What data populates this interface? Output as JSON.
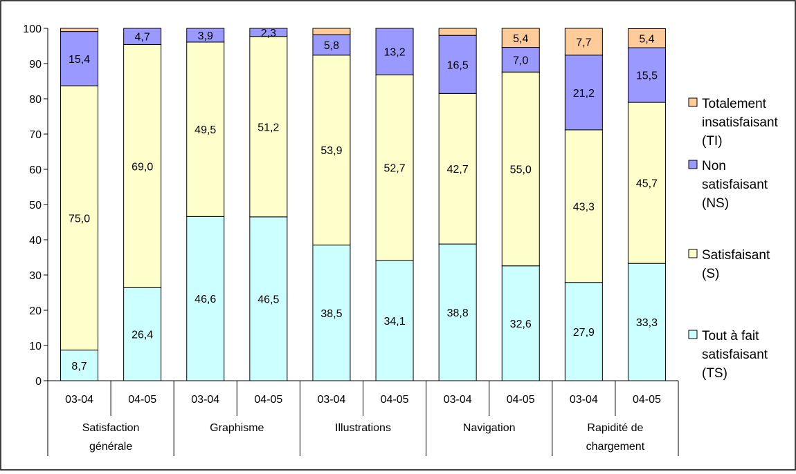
{
  "chart_data": {
    "type": "bar",
    "stacked": true,
    "ylim": [
      0,
      100
    ],
    "yticks": [
      0,
      10,
      20,
      30,
      40,
      50,
      60,
      70,
      80,
      90,
      100
    ],
    "groups": [
      {
        "label_lines": [
          "Satisfaction",
          "générale"
        ],
        "periods": [
          "03-04",
          "04-05"
        ]
      },
      {
        "label_lines": [
          "Graphisme"
        ],
        "periods": [
          "03-04",
          "04-05"
        ]
      },
      {
        "label_lines": [
          "Illustrations"
        ],
        "periods": [
          "03-04",
          "04-05"
        ]
      },
      {
        "label_lines": [
          "Navigation"
        ],
        "periods": [
          "03-04",
          "04-05"
        ]
      },
      {
        "label_lines": [
          "Rapidité de",
          "chargement"
        ],
        "periods": [
          "03-04",
          "04-05"
        ]
      }
    ],
    "series": [
      {
        "key": "TS",
        "legend_lines": [
          "Tout à fait",
          "satisfaisant",
          "(TS)"
        ],
        "color": "#ccffff",
        "values": [
          8.7,
          26.4,
          46.6,
          46.5,
          38.5,
          34.1,
          38.8,
          32.6,
          27.9,
          33.3
        ],
        "labels": [
          "8,7",
          "26,4",
          "46,6",
          "46,5",
          "38,5",
          "34,1",
          "38,8",
          "32,6",
          "27,9",
          "33,3"
        ]
      },
      {
        "key": "S",
        "legend_lines": [
          "Satisfaisant",
          "(S)"
        ],
        "color": "#ffffcc",
        "values": [
          75.0,
          69.0,
          49.5,
          51.2,
          53.9,
          52.7,
          42.7,
          55.0,
          43.3,
          45.7
        ],
        "labels": [
          "75,0",
          "69,0",
          "49,5",
          "51,2",
          "53,9",
          "52,7",
          "42,7",
          "55,0",
          "43,3",
          "45,7"
        ]
      },
      {
        "key": "NS",
        "legend_lines": [
          "Non",
          "satisfaisant",
          "(NS)"
        ],
        "color": "#9999ff",
        "values": [
          15.4,
          4.7,
          3.9,
          2.3,
          5.8,
          13.2,
          16.5,
          7.0,
          21.2,
          15.5
        ],
        "labels": [
          "15,4",
          "4,7",
          "3,9",
          "2,3",
          "5,8",
          "13,2",
          "16,5",
          "7,0",
          "21,2",
          "15,5"
        ]
      },
      {
        "key": "TI",
        "legend_lines": [
          "Totalement",
          "insatisfaisant",
          "(TI)"
        ],
        "color": "#ffcc99",
        "values": [
          0.9,
          0.0,
          0.0,
          0.0,
          1.8,
          0.0,
          2.0,
          5.4,
          7.7,
          5.4
        ],
        "labels": [
          "",
          "",
          "",
          "",
          "",
          "",
          "",
          "5,4",
          "7,7",
          "5,4"
        ]
      }
    ],
    "legend_order": [
      "TI",
      "NS",
      "S",
      "TS"
    ],
    "legend_position": "right",
    "grid": false
  }
}
